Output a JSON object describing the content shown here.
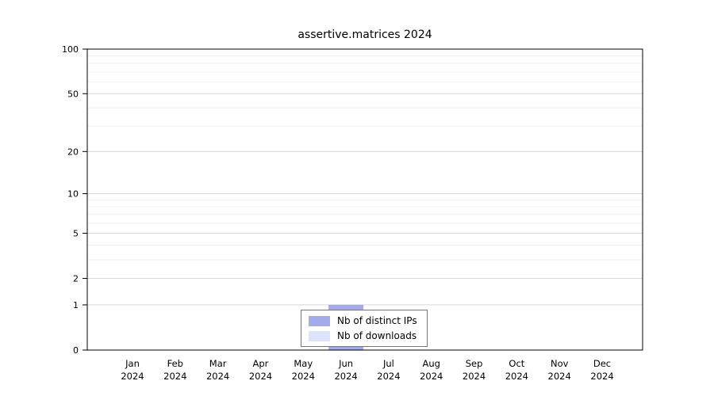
{
  "title": "assertive.matrices 2024",
  "chart_data": {
    "type": "bar",
    "title": "assertive.matrices 2024",
    "x_categories": [
      "Jan 2024",
      "Feb 2024",
      "Mar 2024",
      "Apr 2024",
      "May 2024",
      "Jun 2024",
      "Jul 2024",
      "Aug 2024",
      "Sep 2024",
      "Oct 2024",
      "Nov 2024",
      "Dec 2024"
    ],
    "series": [
      {
        "name": "Nb of distinct IPs",
        "color": "#a3abec",
        "values": [
          0,
          0,
          0,
          0,
          0,
          1,
          0,
          0,
          0,
          0,
          0,
          0
        ]
      },
      {
        "name": "Nb of downloads",
        "color": "#dfe2fb",
        "values": [
          0,
          0,
          0,
          0,
          0,
          1,
          0,
          0,
          0,
          0,
          0,
          0
        ]
      }
    ],
    "y_scale": "log1p",
    "y_ticks": [
      0,
      1,
      2,
      5,
      10,
      20,
      50,
      100
    ],
    "y_minor_ticks": [
      3,
      4,
      6,
      7,
      8,
      9,
      30,
      40,
      60,
      70,
      80,
      90
    ],
    "ylim": [
      0,
      100
    ],
    "grid": true,
    "legend_position": "bottom-center-inside"
  }
}
